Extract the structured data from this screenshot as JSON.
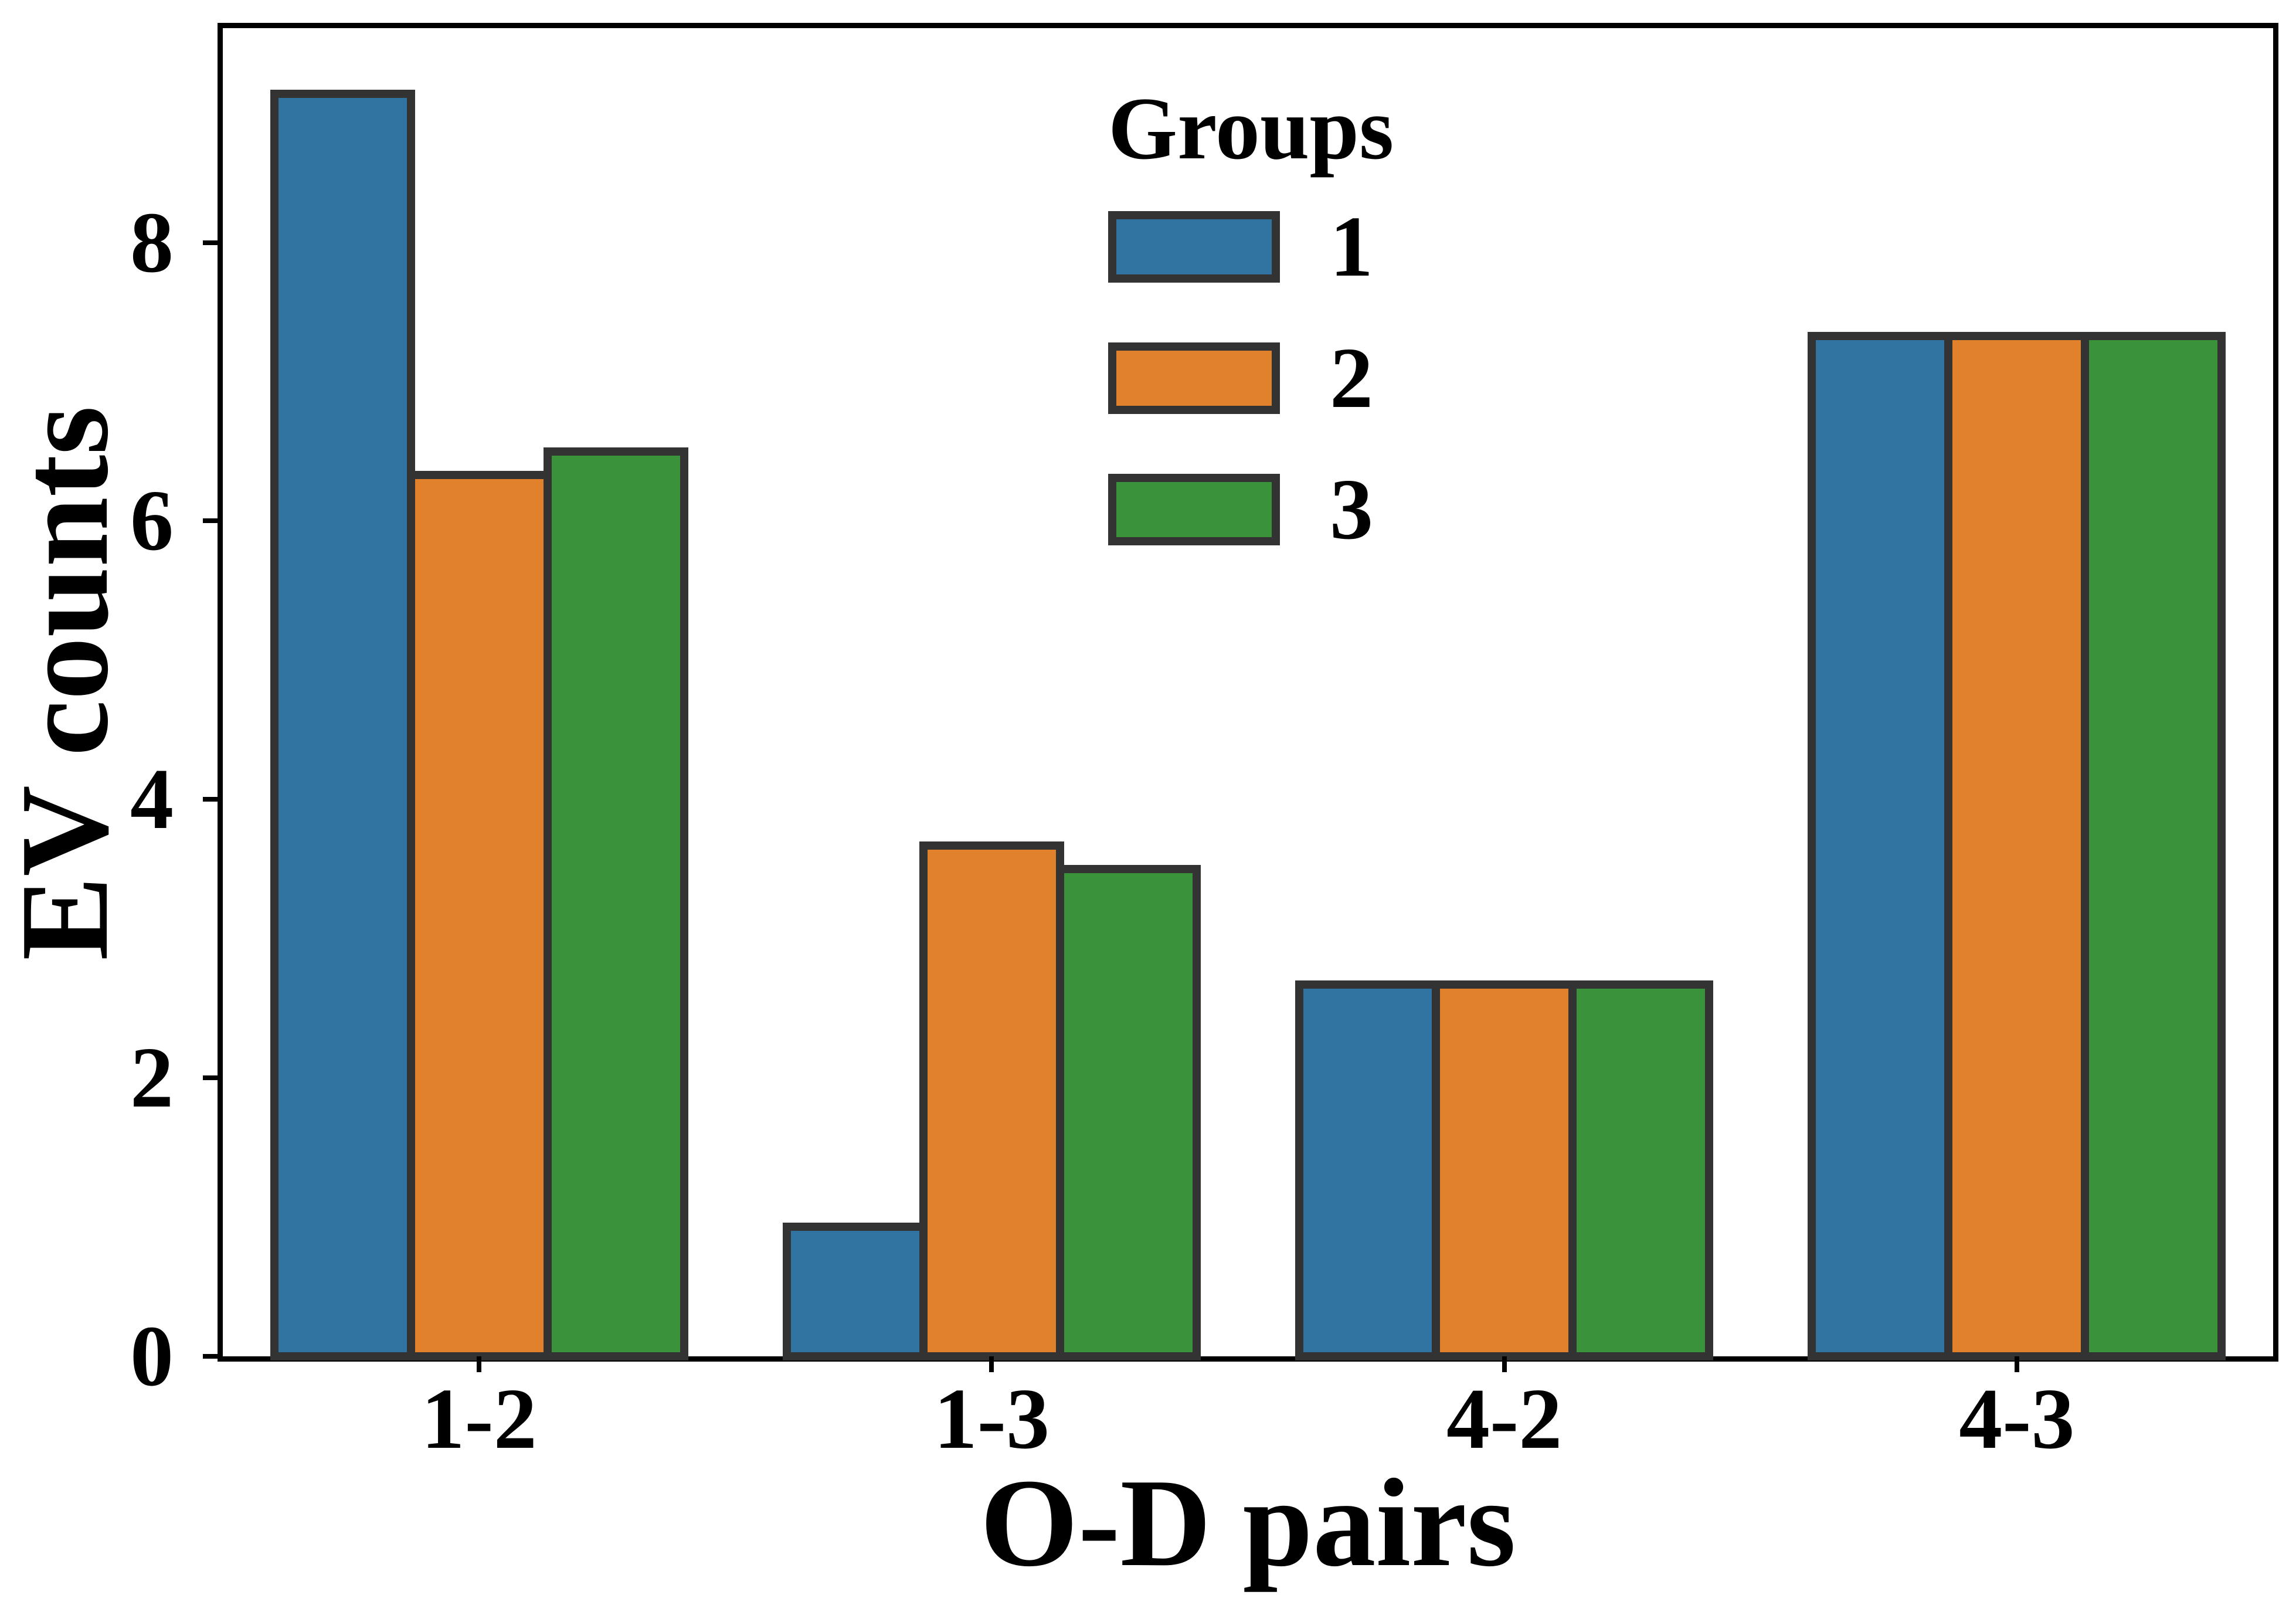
{
  "chart_data": {
    "type": "bar",
    "xlabel": "O-D pairs",
    "ylabel": "EV counts",
    "categories": [
      "1-2",
      "1-3",
      "4-2",
      "4-3"
    ],
    "series": [
      {
        "name": "1",
        "color": "#3274A1",
        "values": [
          9.07,
          0.93,
          2.67,
          7.33
        ]
      },
      {
        "name": "2",
        "color": "#E1812C",
        "values": [
          6.33,
          3.67,
          2.67,
          7.33
        ]
      },
      {
        "name": "3",
        "color": "#3A923A",
        "values": [
          6.5,
          3.5,
          2.67,
          7.33
        ]
      }
    ],
    "legend": {
      "title": "Groups",
      "position": "upper center"
    },
    "yticks": [
      "0",
      "2",
      "4",
      "6",
      "8"
    ],
    "ylim": [
      0,
      9.54
    ],
    "grid": false,
    "bar_edge_color": "#333333",
    "axis_color": "#000000",
    "background": "#ffffff"
  }
}
